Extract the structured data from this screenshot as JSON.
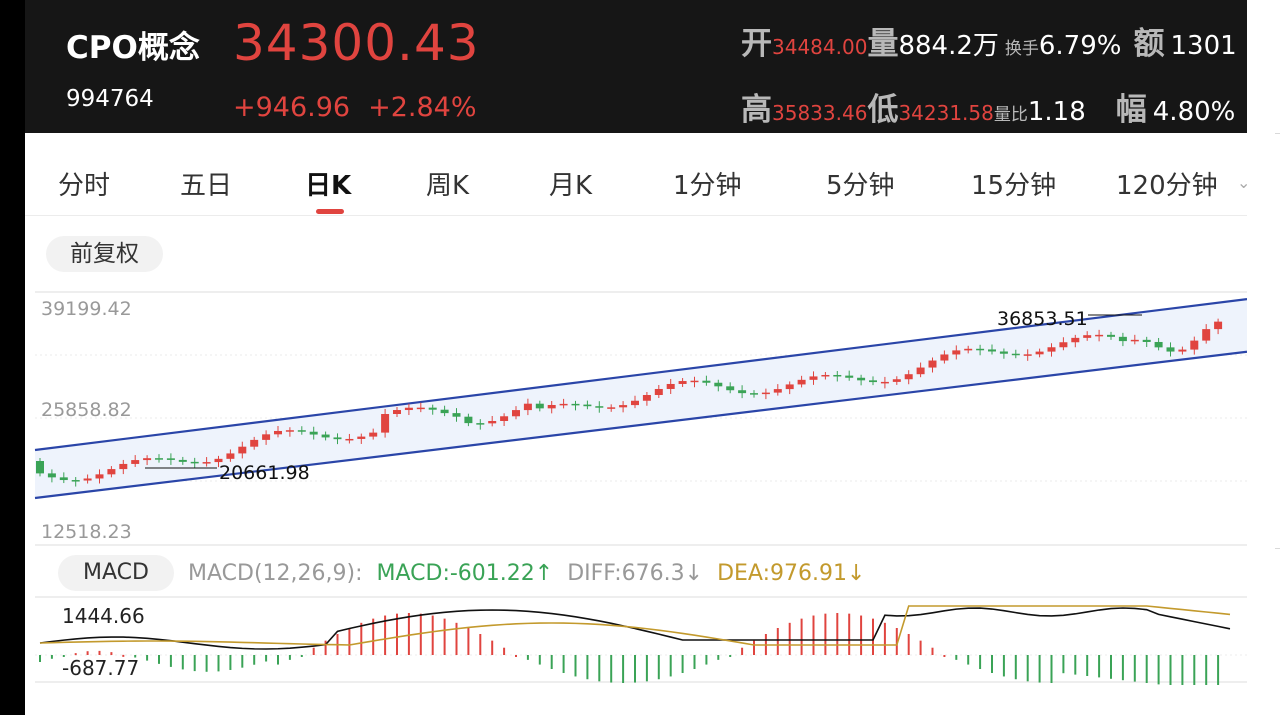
{
  "stock": {
    "name": "CPO概念",
    "code": "994764",
    "price": "34300.43",
    "change": "+946.96",
    "change_pct": "+2.84%"
  },
  "stats": {
    "open_label": "开",
    "open_value": "34484.00",
    "volume_label": "量",
    "volume_value": "884.2万",
    "turnover_label": "换手",
    "turnover_value": "6.79%",
    "amount_label": "额",
    "amount_value": "1301",
    "high_label": "高",
    "high_value": "35833.46",
    "low_label": "低",
    "low_value": "34231.58",
    "vol_ratio_label": "量比",
    "vol_ratio_value": "1.18",
    "amplitude_label": "幅",
    "amplitude_value": "4.80%"
  },
  "tabs": [
    "分时",
    "五日",
    "日K",
    "周K",
    "月K",
    "1分钟",
    "5分钟",
    "15分钟",
    "120分钟"
  ],
  "active_tab": "日K",
  "adjust_button": "前复权",
  "kline": {
    "y_labels": [
      "39199.42",
      "25858.82",
      "12518.23"
    ],
    "max_annotation": "36853.51",
    "min_annotation": "20661.98",
    "colors": {
      "up": "#e0443f",
      "down": "#3aa356",
      "channel": "#2a45a8",
      "channel_fill": "#eef3fc"
    }
  },
  "macd": {
    "button": "MACD",
    "params": "MACD(12,26,9):",
    "macd_value": "MACD:-601.22↑",
    "diff_value": "DIFF:676.3↓",
    "dea_value": "DEA:976.91↓",
    "top_label": "1444.66",
    "bottom_label": "-687.77",
    "colors": {
      "diff": "#111111",
      "dea": "#c39a2d"
    }
  },
  "chart_data": {
    "type": "candlestick",
    "y_axis_ticks": [
      39199.42,
      25858.82,
      12518.23
    ],
    "max_marked": 36853.51,
    "min_marked": 20661.98,
    "overlay": "rising channel (two parallel blue trendlines)",
    "indicator": {
      "name": "MACD(12,26,9)",
      "MACD": -601.22,
      "DIFF": 676.3,
      "DEA": 976.91,
      "axis_top": 1444.66,
      "axis_bottom": -687.77
    }
  }
}
